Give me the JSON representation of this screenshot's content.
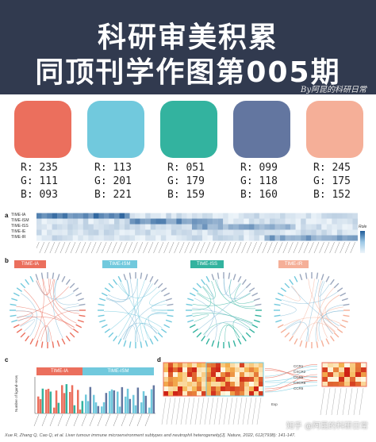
{
  "header": {
    "title_line1": "科研审美积累",
    "title_line2": "同顶刊学作图第005期",
    "credit": "By阿昆的科研日常"
  },
  "palette": [
    {
      "color": "#EB6F5D",
      "r": "R: 235",
      "g": "G: 111",
      "b": "B: 093"
    },
    {
      "color": "#71C9DD",
      "r": "R: 113",
      "g": "G: 201",
      "b": "B: 221"
    },
    {
      "color": "#33B39F",
      "r": "R: 051",
      "g": "G: 179",
      "b": "B: 159"
    },
    {
      "color": "#6376A0",
      "r": "R: 099",
      "g": "G: 118",
      "b": "B: 160"
    },
    {
      "color": "#F5AF98",
      "r": "R: 245",
      "g": "G: 175",
      "b": "B: 152"
    }
  ],
  "figure": {
    "panel_a": {
      "letter": "a",
      "rows": [
        "TIME-IA",
        "TIME-ISM",
        "TIME-ISS",
        "TIME-IE",
        "TIME-IR"
      ],
      "legend_title": "Role"
    },
    "panel_b": {
      "letter": "b",
      "conditions": [
        "TIME-IA",
        "TIME-ISM",
        "TIME-ISS",
        "TIME-IR"
      ]
    },
    "panel_c": {
      "letter": "c",
      "groups": [
        "TIME-IA",
        "TIME-ISM"
      ],
      "ylabel": "Number of ligand–receptor pairs"
    },
    "panel_d": {
      "letter": "d",
      "receptors": [
        "CCR1",
        "CXCR2",
        "CCR5",
        "CXCR6",
        "CCR6"
      ],
      "legend_label": "Exp"
    }
  },
  "citation": "Xue R, Zhang Q, Cao Q, et al. Liver tumour immune microenvironment subtypes and neutrophil heterogeneity[J]. Nature, 2022, 612(7938): 141-147.",
  "watermark": "知乎 @阿昆的科研日常"
}
